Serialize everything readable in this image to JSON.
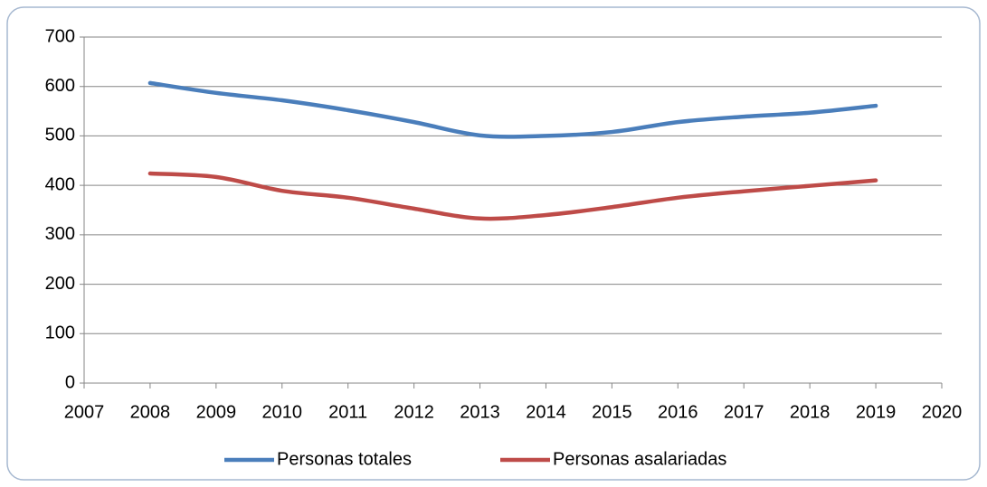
{
  "chart_data": {
    "type": "line",
    "x": [
      2008,
      2009,
      2010,
      2011,
      2012,
      2013,
      2014,
      2015,
      2016,
      2017,
      2018,
      2019
    ],
    "series": [
      {
        "name": "Personas totales",
        "color": "#4a7ebb",
        "values": [
          607,
          587,
          572,
          552,
          528,
          501,
          500,
          508,
          528,
          539,
          547,
          561
        ]
      },
      {
        "name": "Personas asalariadas",
        "color": "#be4b48",
        "values": [
          424,
          417,
          389,
          375,
          353,
          333,
          340,
          356,
          375,
          388,
          399,
          410
        ]
      }
    ],
    "xlim": [
      2007,
      2020
    ],
    "xticks": [
      2007,
      2008,
      2009,
      2010,
      2011,
      2012,
      2013,
      2014,
      2015,
      2016,
      2017,
      2018,
      2019,
      2020
    ],
    "ylim": [
      0,
      700
    ],
    "yticks": [
      0,
      100,
      200,
      300,
      400,
      500,
      600,
      700
    ],
    "grid": true,
    "legend": "bottom",
    "smooth": true
  }
}
